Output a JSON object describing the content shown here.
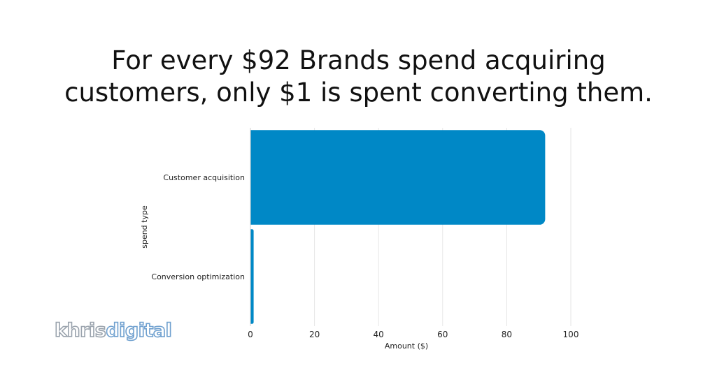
{
  "headline": {
    "line1": "For every $92 Brands spend acquiring",
    "line2": "customers, only $1 is spent converting them."
  },
  "logo": {
    "part1": "khris",
    "part2": "digital"
  },
  "colors": {
    "bar": "#0088c6",
    "grid": "#e6e6e6",
    "axis": "#d0d0d0",
    "text": "#222222"
  },
  "chart_data": {
    "type": "bar",
    "orientation": "horizontal",
    "title": "For every $92 Brands spend acquiring customers, only $1 is spent converting them.",
    "categories": [
      "Customer acquisition",
      "Conversion optimization"
    ],
    "values": [
      92,
      1
    ],
    "xlabel": "Amount ($)",
    "ylabel": "spend type",
    "xlim": [
      0,
      100
    ],
    "xticks": [
      "0",
      "20",
      "40",
      "60",
      "80",
      "100"
    ],
    "grid": "vertical",
    "legend": "none"
  }
}
